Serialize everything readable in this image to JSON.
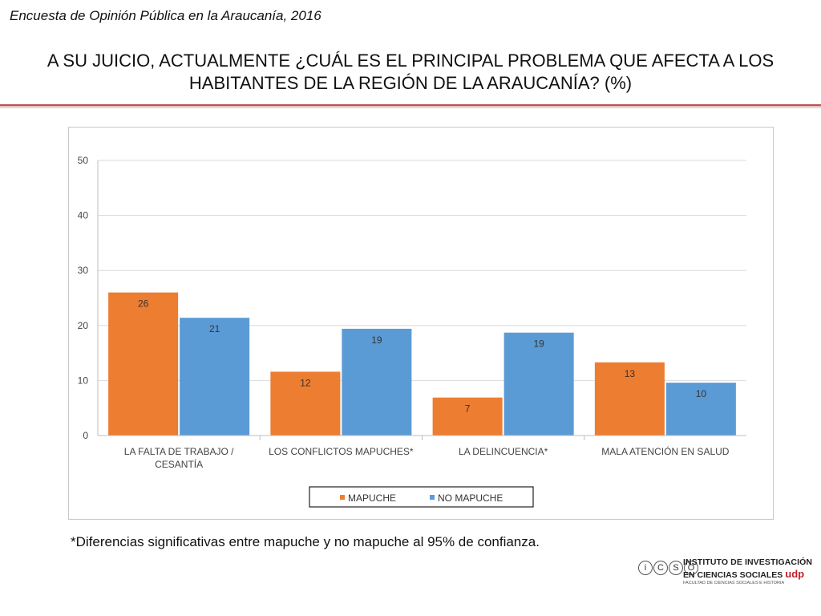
{
  "header": {
    "survey_title": "Encuesta de Opinión Pública en la Araucanía, 2016",
    "main_title_line1": "A SU JUICIO, ACTUALMENTE ¿CUÁL ES EL PRINCIPAL PROBLEMA QUE AFECTA A LOS",
    "main_title_line2": "HABITANTES DE LA REGIÓN DE LA ARAUCANÍA? (%)"
  },
  "colors": {
    "mapuche": "#ed7d31",
    "no_mapuche": "#5b9bd5",
    "accent_rule": "#c0504d",
    "udp_red": "#c0202a"
  },
  "chart_data": {
    "type": "bar",
    "categories": [
      [
        "LA FALTA DE TRABAJO /",
        "CESANTÍA"
      ],
      [
        "LOS CONFLICTOS MAPUCHES*"
      ],
      [
        "LA DELINCUENCIA*"
      ],
      [
        "MALA ATENCIÓN EN SALUD"
      ]
    ],
    "series": [
      {
        "name": "MAPUCHE",
        "values": [
          26,
          11.6,
          6.9,
          13.3
        ],
        "labels": [
          "26",
          "12",
          "7",
          "13"
        ]
      },
      {
        "name": "NO MAPUCHE",
        "values": [
          21.4,
          19.4,
          18.7,
          9.6
        ],
        "labels": [
          "21",
          "19",
          "19",
          "10"
        ]
      }
    ],
    "ylim": [
      0,
      50
    ],
    "yticks": [
      0,
      10,
      20,
      30,
      40,
      50
    ],
    "grid": true,
    "legend": "bottom"
  },
  "footnote": "*Diferencias significativas entre mapuche y no mapuche al 95% de confianza.",
  "logo": {
    "letters": [
      "i",
      "C",
      "S",
      "O"
    ],
    "line1": "INSTITUTO DE INVESTIGACIÓN",
    "line2": "EN CIENCIAS SOCIALES",
    "udp": "udp",
    "line3": "FACULTAD DE CIENCIAS SOCIALES E HISTORIA"
  }
}
